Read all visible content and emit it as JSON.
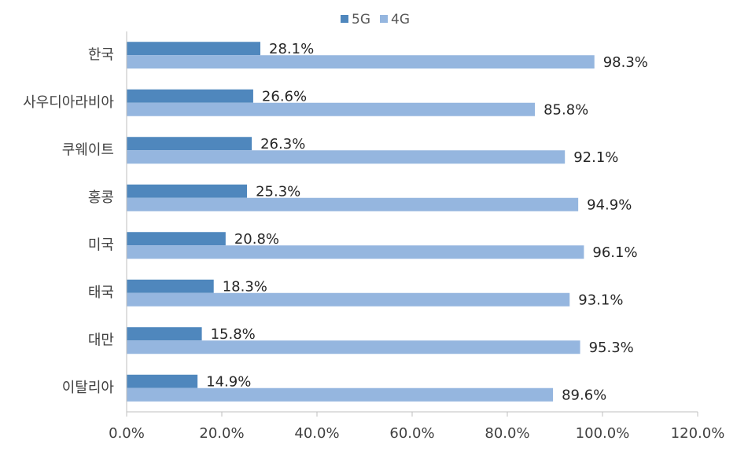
{
  "chart_data": {
    "type": "bar",
    "orientation": "horizontal",
    "categories": [
      "한국",
      "사우디아라비아",
      "쿠웨이트",
      "홍콩",
      "미국",
      "태국",
      "대만",
      "이탈리아"
    ],
    "series": [
      {
        "name": "5G",
        "values": [
          28.1,
          26.6,
          26.3,
          25.3,
          20.8,
          18.3,
          15.8,
          14.9
        ],
        "color": "#4f87bd"
      },
      {
        "name": "4G",
        "values": [
          98.3,
          85.8,
          92.1,
          94.9,
          96.1,
          93.1,
          95.3,
          89.6
        ],
        "color": "#95b6df"
      }
    ],
    "data_labels": {
      "5G": [
        "28.1%",
        "26.6%",
        "26.3%",
        "25.3%",
        "20.8%",
        "18.3%",
        "15.8%",
        "14.9%"
      ],
      "4G": [
        "98.3%",
        "85.8%",
        "92.1%",
        "94.9%",
        "96.1%",
        "93.1%",
        "95.3%",
        "89.6%"
      ]
    },
    "xlim": [
      0,
      120
    ],
    "x_ticks": [
      0,
      20,
      40,
      60,
      80,
      100,
      120
    ],
    "x_tick_labels": [
      "0.0%",
      "20.0%",
      "40.0%",
      "60.0%",
      "80.0%",
      "100.0%",
      "120.0%"
    ],
    "grid": false,
    "legend_position": "top-center"
  }
}
